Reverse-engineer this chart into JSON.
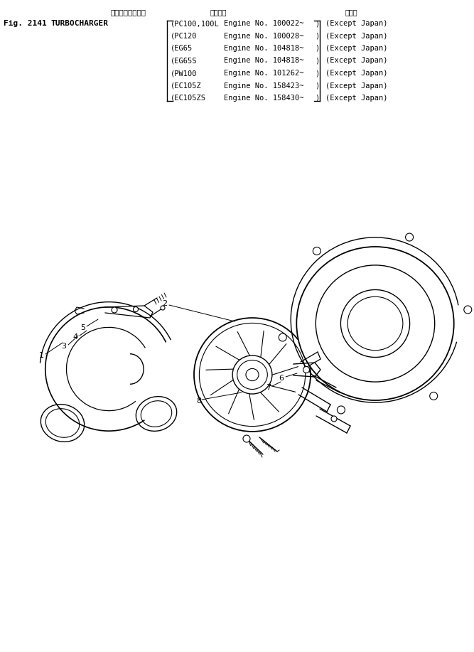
{
  "bg_color": "#ffffff",
  "fig_label": "Fig. 2141",
  "title_jp": "ターボチャージャ",
  "title_en": "TURBOCHARGER",
  "header_applicable": "適用号機",
  "header_overseas": "海外向",
  "rows": [
    {
      "model": "PC100,100L",
      "engine": "Engine No. 100022~",
      "region": "(Except Japan)"
    },
    {
      "model": "PC120",
      "engine": "Engine No. 100028~",
      "region": "(Except Japan)"
    },
    {
      "model": "EG65",
      "engine": "Engine No. 104818~",
      "region": "(Except Japan)"
    },
    {
      "model": "EG65S",
      "engine": "Engine No. 104818~",
      "region": "(Except Japan)"
    },
    {
      "model": "PW100",
      "engine": "Engine No. 101262~",
      "region": "(Except Japan)"
    },
    {
      "model": "EC105Z",
      "engine": "Engine No. 158423~",
      "region": "(Except Japan)"
    },
    {
      "model": "EC105ZS",
      "engine": "Engine No. 158430~",
      "region": "(Except Japan)"
    }
  ]
}
